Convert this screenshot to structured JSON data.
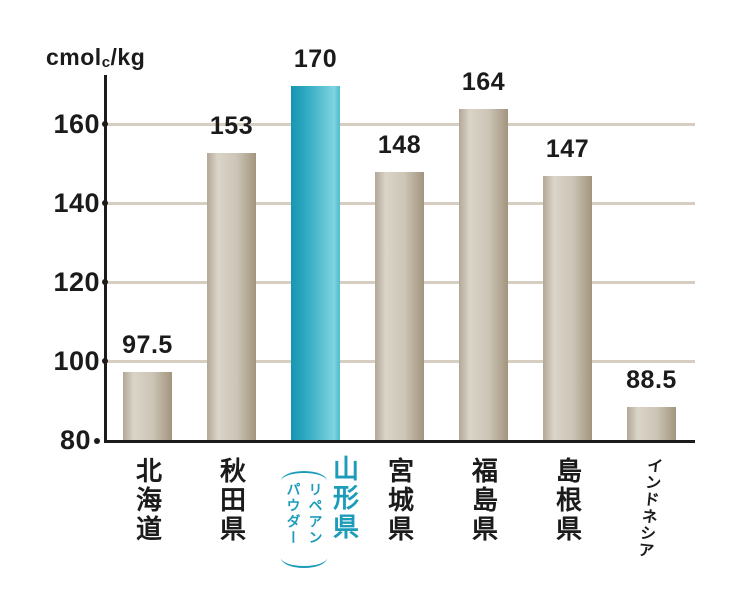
{
  "chart_data": {
    "type": "bar",
    "title": "",
    "unit_label": {
      "prefix": "cmol",
      "subscript": "c",
      "suffix": "/kg"
    },
    "categories": [
      "北海道",
      "秋田県",
      "山形県",
      "宮城県",
      "福島県",
      "島根県",
      "インドネシア"
    ],
    "values": [
      97.5,
      153,
      170,
      148,
      164,
      147,
      88.5
    ],
    "value_labels": [
      "97.5",
      "153",
      "170",
      "148",
      "164",
      "147",
      "88.5"
    ],
    "highlight": {
      "index": 2,
      "annotation": "リペアンパウダー"
    },
    "y_ticks": [
      160,
      140,
      120,
      100,
      80
    ],
    "ylim": [
      80,
      172
    ],
    "grid": true,
    "legend_position": "none",
    "colors": {
      "bar_edge": "#b3a798",
      "bar_light": "#dad4c8",
      "bar_mid": "#cdc5b6",
      "bar_dark": "#a2957f",
      "highlight_dark": "#1795b0",
      "highlight_mid": "#2fa9c1",
      "highlight_light": "#7fd3df",
      "highlight_edge": "#4fbccd",
      "grid": "#d6cec1",
      "axis": "#1b1b1b",
      "text": "#1b1b1b",
      "highlight_text": "#1d9cb9"
    }
  }
}
